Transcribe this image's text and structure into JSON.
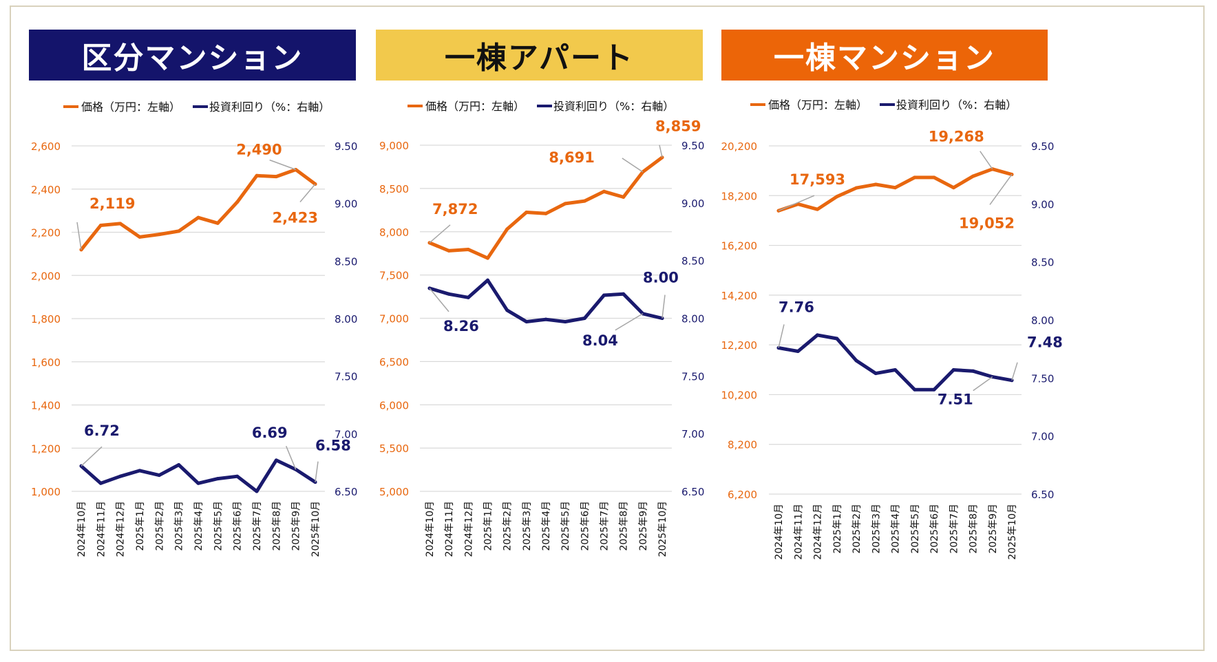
{
  "colors": {
    "price": "#e8670f",
    "yield": "#1a1a6e",
    "grid": "#d9d9d9",
    "leader": "#a6a6a6"
  },
  "months": [
    "2024年10月",
    "2024年11月",
    "2024年12月",
    "2025年1月",
    "2025年2月",
    "2025年3月",
    "2025年4月",
    "2025年5月",
    "2025年6月",
    "2025年7月",
    "2025年8月",
    "2025年9月",
    "2025年10月"
  ],
  "panels": [
    {
      "title": "区分マンション",
      "title_bg": "#14146b",
      "title_color": "#ffffff",
      "legend_price": "価格（万円：左軸）",
      "legend_yield": "投資利回り（%：右軸）"
    },
    {
      "title": "一棟アパート",
      "title_bg": "#f2c94c",
      "title_color": "#111111",
      "legend_price": "価格（万円：左軸）",
      "legend_yield": "投資利回り（%：右軸）"
    },
    {
      "title": "一棟マンション",
      "title_bg": "#ec6508",
      "title_color": "#ffffff",
      "legend_price": "価格（万円：左軸）",
      "legend_yield": "投資利回り（%：右軸）"
    }
  ],
  "chart_data": [
    {
      "type": "line",
      "title": "区分マンション",
      "categories": [
        "2024年10月",
        "2024年11月",
        "2024年12月",
        "2025年1月",
        "2025年2月",
        "2025年3月",
        "2025年4月",
        "2025年5月",
        "2025年6月",
        "2025年7月",
        "2025年8月",
        "2025年9月",
        "2025年10月"
      ],
      "left_axis": {
        "min": 1000,
        "max": 2600,
        "ticks": [
          "1,000",
          "1,200",
          "1,400",
          "1,600",
          "1,800",
          "2,000",
          "2,200",
          "2,400",
          "2,600"
        ]
      },
      "right_axis": {
        "min": 6.5,
        "max": 9.5,
        "ticks": [
          "6.50",
          "7.00",
          "7.50",
          "8.00",
          "8.50",
          "9.00",
          "9.50"
        ]
      },
      "series": [
        {
          "name": "価格（万円：左軸）",
          "axis": "left",
          "values": [
            2119,
            2232,
            2240,
            2178,
            2190,
            2205,
            2268,
            2242,
            2340,
            2462,
            2458,
            2490,
            2423
          ]
        },
        {
          "name": "投資利回り（%：右軸）",
          "axis": "right",
          "values": [
            6.72,
            6.57,
            6.63,
            6.68,
            6.64,
            6.73,
            6.57,
            6.61,
            6.63,
            6.5,
            6.77,
            6.69,
            6.58
          ]
        }
      ],
      "annotations": [
        {
          "series": 0,
          "index": 0,
          "label": "2,119"
        },
        {
          "series": 0,
          "index": 11,
          "label": "2,490"
        },
        {
          "series": 0,
          "index": 12,
          "label": "2,423"
        },
        {
          "series": 1,
          "index": 0,
          "label": "6.72"
        },
        {
          "series": 1,
          "index": 11,
          "label": "6.69"
        },
        {
          "series": 1,
          "index": 12,
          "label": "6.58"
        }
      ]
    },
    {
      "type": "line",
      "title": "一棟アパート",
      "categories": [
        "2024年10月",
        "2024年11月",
        "2024年12月",
        "2025年1月",
        "2025年2月",
        "2025年3月",
        "2025年4月",
        "2025年5月",
        "2025年6月",
        "2025年7月",
        "2025年8月",
        "2025年9月",
        "2025年10月"
      ],
      "left_axis": {
        "min": 5000,
        "max": 9000,
        "ticks": [
          "5,000",
          "5,500",
          "6,000",
          "6,500",
          "7,000",
          "7,500",
          "8,000",
          "8,500",
          "9,000"
        ]
      },
      "right_axis": {
        "min": 6.5,
        "max": 9.5,
        "ticks": [
          "6.50",
          "7.00",
          "7.50",
          "8.00",
          "8.50",
          "9.00",
          "9.50"
        ]
      },
      "series": [
        {
          "name": "価格（万円：左軸）",
          "axis": "left",
          "values": [
            7872,
            7780,
            7795,
            7695,
            8030,
            8225,
            8210,
            8325,
            8355,
            8465,
            8400,
            8691,
            8859
          ]
        },
        {
          "name": "投資利回り（%：右軸）",
          "axis": "right",
          "values": [
            8.26,
            8.21,
            8.18,
            8.33,
            8.07,
            7.97,
            7.99,
            7.97,
            8.0,
            8.2,
            8.21,
            8.04,
            8.0
          ]
        }
      ],
      "annotations": [
        {
          "series": 0,
          "index": 0,
          "label": "7,872"
        },
        {
          "series": 0,
          "index": 11,
          "label": "8,691"
        },
        {
          "series": 0,
          "index": 12,
          "label": "8,859"
        },
        {
          "series": 1,
          "index": 0,
          "label": "8.26"
        },
        {
          "series": 1,
          "index": 11,
          "label": "8.04"
        },
        {
          "series": 1,
          "index": 12,
          "label": "8.00"
        }
      ]
    },
    {
      "type": "line",
      "title": "一棟マンション",
      "categories": [
        "2024年10月",
        "2024年11月",
        "2024年12月",
        "2025年1月",
        "2025年2月",
        "2025年3月",
        "2025年4月",
        "2025年5月",
        "2025年6月",
        "2025年7月",
        "2025年8月",
        "2025年9月",
        "2025年10月"
      ],
      "left_axis": {
        "min": 6200,
        "max": 20200,
        "ticks": [
          "6,200",
          "8,200",
          "10,200",
          "12,200",
          "14,200",
          "16,200",
          "18,200",
          "20,200"
        ]
      },
      "right_axis": {
        "min": 6.5,
        "max": 9.5,
        "ticks": [
          "6.50",
          "7.00",
          "7.50",
          "8.00",
          "8.50",
          "9.00",
          "9.50"
        ]
      },
      "series": [
        {
          "name": "価格（万円：左軸）",
          "axis": "left",
          "values": [
            17593,
            17860,
            17650,
            18160,
            18510,
            18650,
            18520,
            18930,
            18930,
            18520,
            18980,
            19268,
            19052
          ]
        },
        {
          "name": "投資利回り（%：右軸）",
          "axis": "right",
          "values": [
            7.76,
            7.73,
            7.87,
            7.84,
            7.65,
            7.54,
            7.57,
            7.4,
            7.4,
            7.57,
            7.56,
            7.51,
            7.48
          ]
        }
      ],
      "annotations": [
        {
          "series": 0,
          "index": 0,
          "label": "17,593"
        },
        {
          "series": 0,
          "index": 11,
          "label": "19,268"
        },
        {
          "series": 0,
          "index": 12,
          "label": "19,052"
        },
        {
          "series": 1,
          "index": 0,
          "label": "7.76"
        },
        {
          "series": 1,
          "index": 11,
          "label": "7.51"
        },
        {
          "series": 1,
          "index": 12,
          "label": "7.48"
        }
      ]
    }
  ]
}
